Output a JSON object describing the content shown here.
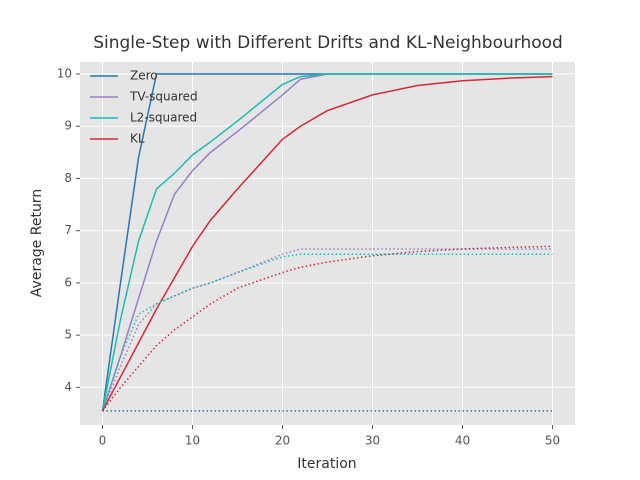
{
  "chart_data": {
    "type": "line",
    "title": "Single-Step with Different Drifts and KL-Neighbourhood",
    "x_label": "Iteration",
    "y_label": "Average Return",
    "x": [
      0,
      2,
      4,
      6,
      8,
      10,
      12,
      15,
      20,
      22,
      25,
      30,
      35,
      40,
      45,
      50
    ],
    "series": [
      {
        "name": "Zero",
        "color": "#2a78b2",
        "linestyle": "solid",
        "values": [
          3.55,
          6.0,
          8.4,
          10,
          10,
          10,
          10,
          10,
          10,
          10,
          10,
          10,
          10,
          10,
          10,
          10
        ]
      },
      {
        "name": "TV-squared",
        "color": "#9a7fc6",
        "linestyle": "solid",
        "values": [
          3.55,
          4.6,
          5.7,
          6.8,
          7.7,
          8.15,
          8.5,
          8.9,
          9.6,
          9.9,
          10,
          10,
          10,
          10,
          10,
          10
        ]
      },
      {
        "name": "L2-squared",
        "color": "#1bbdb0",
        "linestyle": "solid",
        "values": [
          3.55,
          5.3,
          6.8,
          7.8,
          8.1,
          8.45,
          8.7,
          9.1,
          9.8,
          9.95,
          10,
          10,
          10,
          10,
          10,
          10
        ]
      },
      {
        "name": "KL",
        "color": "#d62738",
        "linestyle": "solid",
        "values": [
          3.55,
          4.2,
          4.85,
          5.5,
          6.1,
          6.7,
          7.2,
          7.8,
          8.75,
          9.0,
          9.3,
          9.6,
          9.78,
          9.87,
          9.92,
          9.95
        ]
      },
      {
        "color": "#2a78b2",
        "linestyle": "dotted",
        "values": [
          3.55,
          3.55,
          3.55,
          3.55,
          3.55,
          3.55,
          3.55,
          3.55,
          3.55,
          3.55,
          3.55,
          3.55,
          3.55,
          3.55,
          3.55,
          3.55
        ]
      },
      {
        "color": "#9a7fc6",
        "linestyle": "dotted",
        "values": [
          3.55,
          4.4,
          5.2,
          5.6,
          5.75,
          5.9,
          6.0,
          6.2,
          6.55,
          6.65,
          6.65,
          6.65,
          6.65,
          6.65,
          6.65,
          6.65
        ]
      },
      {
        "color": "#1bbdb0",
        "linestyle": "dotted",
        "values": [
          3.55,
          4.6,
          5.4,
          5.6,
          5.75,
          5.9,
          6.0,
          6.2,
          6.5,
          6.55,
          6.55,
          6.55,
          6.55,
          6.55,
          6.55,
          6.55
        ]
      },
      {
        "color": "#d62738",
        "linestyle": "dotted",
        "values": [
          3.55,
          4.0,
          4.4,
          4.8,
          5.1,
          5.35,
          5.6,
          5.9,
          6.2,
          6.3,
          6.4,
          6.52,
          6.6,
          6.65,
          6.68,
          6.7
        ]
      }
    ],
    "xlim": [
      -2.5,
      52.5
    ],
    "ylim": [
      3.28,
      10.23
    ],
    "xticks": [
      0,
      10,
      20,
      30,
      40,
      50
    ],
    "yticks": [
      4,
      5,
      6,
      7,
      8,
      9,
      10
    ],
    "grid": true,
    "legend_position": "upper left"
  }
}
